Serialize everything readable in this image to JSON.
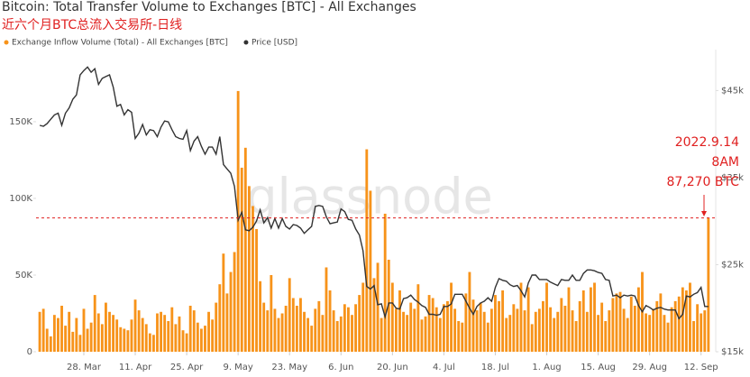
{
  "chart_data": {
    "type": "bar",
    "title": "Bitcoin: Total Transfer Volume to Exchanges [BTC] - All Exchanges",
    "subtitle": "近六个月BTC总流入交易所-日线",
    "watermark": "glassnode",
    "annotation": {
      "lines": [
        "2022.9.14",
        "8AM",
        "87,270 BTC"
      ],
      "value": 87270
    },
    "x": [
      75,
      76,
      77,
      78,
      79,
      80,
      81,
      82,
      83,
      84,
      85,
      86,
      87,
      88,
      89,
      90,
      91,
      92,
      93,
      94,
      95,
      96,
      97,
      98,
      99,
      100,
      101,
      102,
      103,
      104,
      105,
      106,
      107,
      108,
      109,
      110,
      111,
      112,
      113,
      114,
      115,
      116,
      117,
      118,
      119,
      120,
      121,
      122,
      123,
      124,
      125,
      126,
      127,
      128,
      129,
      130,
      131,
      132,
      133,
      134,
      135,
      136,
      137,
      138,
      139,
      140,
      141,
      142,
      143,
      144,
      145,
      146,
      147,
      148,
      149,
      150,
      151,
      152,
      153,
      154,
      155,
      156,
      157,
      158,
      159,
      160,
      161,
      162,
      163,
      164,
      165,
      166,
      167,
      168,
      169,
      170,
      171,
      172,
      173,
      174,
      175,
      176,
      177,
      178,
      179,
      180,
      181,
      182,
      183,
      184,
      185,
      186,
      187,
      188,
      189,
      190,
      191,
      192,
      193,
      194,
      195,
      196,
      197,
      198,
      199,
      200,
      201,
      202,
      203,
      204,
      205,
      206,
      207,
      208,
      209,
      210,
      211,
      212,
      213,
      214,
      215,
      216,
      217,
      218,
      219,
      220,
      221,
      222,
      223,
      224,
      225,
      226,
      227,
      228,
      229,
      230,
      231,
      232,
      233,
      234,
      235,
      236,
      237,
      238,
      239,
      240,
      241,
      242,
      243,
      244,
      245,
      246,
      247,
      248,
      249,
      250,
      251,
      252,
      253,
      254,
      255,
      256,
      257
    ],
    "xlim": [
      74,
      259
    ],
    "xticks": [
      {
        "value": 87,
        "label": "28. Mar"
      },
      {
        "value": 101,
        "label": "11. Apr"
      },
      {
        "value": 115,
        "label": "25. Apr"
      },
      {
        "value": 129,
        "label": "9. May"
      },
      {
        "value": 143,
        "label": "23. May"
      },
      {
        "value": 157,
        "label": "6. Jun"
      },
      {
        "value": 171,
        "label": "20. Jun"
      },
      {
        "value": 185,
        "label": "4. Jul"
      },
      {
        "value": 199,
        "label": "18. Jul"
      },
      {
        "value": 213,
        "label": "1. Aug"
      },
      {
        "value": 227,
        "label": "15. Aug"
      },
      {
        "value": 241,
        "label": "29. Aug"
      },
      {
        "value": 255,
        "label": "12. Sep"
      }
    ],
    "ylim": [
      0,
      197000
    ],
    "yticks": [
      0,
      {
        "value": 50000,
        "label": "50K"
      },
      {
        "value": 100000,
        "label": "100K"
      },
      {
        "value": 150000,
        "label": "150K"
      }
    ],
    "y2lim": [
      15000,
      49700
    ],
    "y2ticks": [
      {
        "value": 15000,
        "label": "$15k"
      },
      {
        "value": 25000,
        "label": "$25k"
      },
      {
        "value": 35000,
        "label": "$35k"
      },
      {
        "value": 45000,
        "label": "$45k"
      }
    ],
    "series": [
      {
        "name": "Exchange Inflow Volume (Total) - All Exchanges [BTC]",
        "type": "bar",
        "color": "#f7931a",
        "values": [
          26000,
          28000,
          15000,
          10000,
          24000,
          22000,
          30000,
          17000,
          26000,
          13000,
          22000,
          11000,
          28000,
          15000,
          19000,
          37000,
          25000,
          18000,
          32000,
          26000,
          24000,
          21000,
          16000,
          15000,
          14000,
          21000,
          34000,
          27000,
          22000,
          18000,
          12000,
          11000,
          25000,
          26000,
          24000,
          20000,
          29000,
          18000,
          23000,
          14000,
          12000,
          30000,
          27000,
          19000,
          15000,
          17000,
          26000,
          21000,
          32000,
          44000,
          64000,
          38000,
          52000,
          65000,
          170000,
          120000,
          133000,
          108000,
          95000,
          80000,
          46000,
          32000,
          27000,
          50000,
          28000,
          22000,
          25000,
          30000,
          48000,
          35000,
          30000,
          35000,
          26000,
          22000,
          17000,
          28000,
          33000,
          24000,
          55000,
          40000,
          27000,
          20000,
          23000,
          31000,
          29000,
          24000,
          31000,
          37000,
          45000,
          132000,
          105000,
          48000,
          58000,
          22000,
          90000,
          60000,
          45000,
          28000,
          40000,
          26000,
          24000,
          32000,
          28000,
          44000,
          21000,
          23000,
          37000,
          35000,
          29000,
          22000,
          31000,
          33000,
          45000,
          28000,
          20000,
          19000,
          38000,
          52000,
          34000,
          27000,
          32000,
          26000,
          19000,
          28000,
          37000,
          33000,
          40000,
          22000,
          24000,
          31000,
          28000,
          45000,
          27000,
          42000,
          18000,
          26000,
          28000,
          33000,
          45000,
          29000,
          22000,
          26000,
          35000,
          30000,
          42000,
          27000,
          20000,
          33000,
          40000,
          26000,
          42000,
          45000,
          24000,
          32000,
          20000,
          27000,
          35000,
          38000,
          39000,
          28000,
          22000,
          36000,
          30000,
          42000,
          52000,
          25000,
          24000,
          28000,
          33000,
          38000,
          24000,
          19000,
          29000,
          33000,
          36000,
          42000,
          40000,
          45000,
          20000,
          31000,
          25000,
          27000,
          87270
        ]
      },
      {
        "name": "Price [USD]",
        "type": "line",
        "axis": "y2",
        "color": "#333333",
        "values": [
          41000,
          40900,
          41200,
          41700,
          42200,
          42400,
          41000,
          42400,
          43000,
          44000,
          44500,
          46800,
          47300,
          47700,
          47100,
          47500,
          45700,
          46400,
          46600,
          46800,
          45400,
          43200,
          43400,
          42200,
          42800,
          42500,
          39500,
          40100,
          41100,
          39900,
          40500,
          40400,
          39700,
          40800,
          41500,
          41400,
          40500,
          39700,
          39500,
          39400,
          40400,
          38100,
          39200,
          39700,
          38600,
          37700,
          38500,
          38500,
          37700,
          39700,
          36500,
          36000,
          35500,
          34000,
          30100,
          31000,
          29000,
          28900,
          29300,
          30000,
          31300,
          29800,
          30400,
          29200,
          30300,
          29200,
          30300,
          29400,
          29100,
          29600,
          29500,
          29200,
          28600,
          29000,
          29400,
          31700,
          31800,
          31700,
          30500,
          29700,
          29800,
          29900,
          31400,
          31100,
          30200,
          30100,
          29100,
          28400,
          26600,
          22500,
          22200,
          22600,
          20400,
          20500,
          19000,
          20600,
          20600,
          20000,
          19900,
          21100,
          21200,
          21500,
          21000,
          20700,
          20300,
          20100,
          19300,
          19300,
          19200,
          19300,
          20200,
          20200,
          20500,
          21600,
          21600,
          21600,
          20800,
          20000,
          19300,
          20200,
          20600,
          20800,
          21200,
          20800,
          22400,
          23400,
          23200,
          23100,
          22700,
          22500,
          22600,
          22000,
          21300,
          22900,
          23800,
          23800,
          23300,
          23300,
          23300,
          23000,
          22800,
          22600,
          23300,
          23200,
          23200,
          23800,
          23200,
          23200,
          24000,
          24400,
          24400,
          24300,
          24100,
          24000,
          23300,
          23200,
          21400,
          21500,
          21200,
          21500,
          21400,
          21500,
          21400,
          20300,
          19600,
          20300,
          20100,
          19800,
          20000,
          20100,
          19900,
          19800,
          19800,
          19800,
          18800,
          19300,
          21400,
          21300,
          21600,
          21800,
          22400,
          20200,
          20200
        ]
      }
    ]
  }
}
